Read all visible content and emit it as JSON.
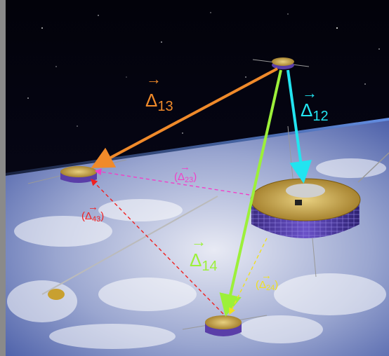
{
  "colors": {
    "delta12": "#22e4f0",
    "delta13": "#f08a2a",
    "delta14": "#9cf03a",
    "delta23": "#f040c8",
    "delta24": "#f0e020",
    "delta43": "#f02020",
    "space": "#05050c",
    "earth_light": "#e6e8f2",
    "earth_blue": "#4a60a8",
    "panel_gray": "#8a8a8a",
    "sat_gold": "#c8a030",
    "sat_purple": "#5a3ea8"
  },
  "labels": {
    "delta13": {
      "symbol": "Δ",
      "sub": "13",
      "arrow": "→",
      "paren": false
    },
    "delta12": {
      "symbol": "Δ",
      "sub": "12",
      "arrow": "→",
      "paren": false
    },
    "delta14": {
      "symbol": "Δ",
      "sub": "14",
      "arrow": "→",
      "paren": false
    },
    "delta23": {
      "symbol": "Δ",
      "sub": "23",
      "arrow": "→",
      "paren": true
    },
    "delta43": {
      "symbol": "Δ",
      "sub": "43",
      "arrow": "→",
      "paren": true
    },
    "delta24": {
      "symbol": "Δ",
      "sub": "24",
      "arrow": "→",
      "paren": true
    }
  },
  "links": [
    {
      "id": "delta13",
      "from": "sat1",
      "to": "sat3",
      "style": "solid"
    },
    {
      "id": "delta12",
      "from": "sat1",
      "to": "sat2",
      "style": "solid"
    },
    {
      "id": "delta14",
      "from": "sat1",
      "to": "sat4",
      "style": "solid"
    },
    {
      "id": "delta23",
      "from": "sat2",
      "to": "sat3",
      "style": "dashed"
    },
    {
      "id": "delta43",
      "from": "sat4",
      "to": "sat3",
      "style": "dashed"
    },
    {
      "id": "delta24",
      "from": "sat2",
      "to": "sat4",
      "style": "dashed"
    }
  ]
}
